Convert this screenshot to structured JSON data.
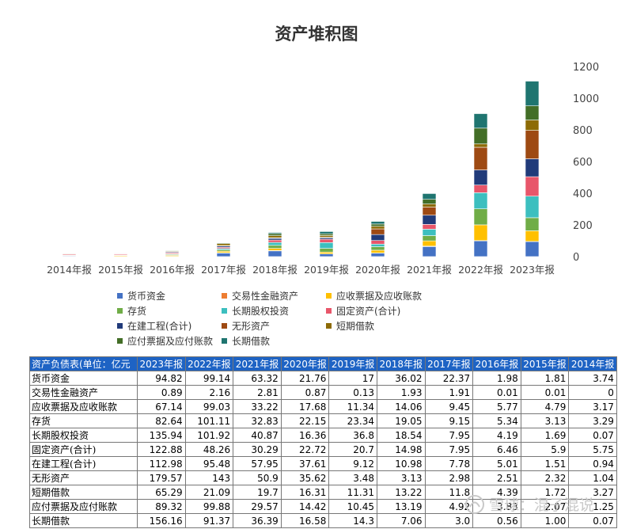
{
  "chart_data": {
    "type": "bar",
    "stacked": true,
    "title": "资产堆积图",
    "categories": [
      "2014年报",
      "2015年报",
      "2016年报",
      "2017年报",
      "2018年报",
      "2019年报",
      "2020年报",
      "2021年报",
      "2022年报",
      "2023年报"
    ],
    "ylim": [
      0,
      1200
    ],
    "yticks": [
      0,
      200,
      400,
      600,
      800,
      1000,
      1200
    ],
    "y_axis_side": "right",
    "legend_position": "bottom",
    "series": [
      {
        "name": "货币资金",
        "color": "#4472c4",
        "values": [
          3.74,
          1.81,
          1.98,
          22.37,
          36.02,
          17,
          21.76,
          63.32,
          99.14,
          94.82
        ]
      },
      {
        "name": "交易性金融资产",
        "color": "#ed7d31",
        "values": [
          0,
          0.01,
          0.01,
          1.91,
          1.93,
          0.13,
          0.87,
          2.81,
          2.16,
          0.89
        ]
      },
      {
        "name": "应收票据及应收账款",
        "color": "#ffc000",
        "values": [
          3.17,
          4.79,
          5.77,
          9.45,
          14.06,
          11.34,
          17.68,
          33.22,
          99.03,
          67.14
        ]
      },
      {
        "name": "存货",
        "color": "#70ad47",
        "values": [
          3.29,
          3.13,
          5.34,
          9.15,
          19.05,
          23.34,
          22.15,
          32.83,
          101.11,
          82.64
        ]
      },
      {
        "name": "长期股权投资",
        "color": "#3cbfbf",
        "values": [
          0.07,
          1.69,
          4.19,
          7.95,
          18.54,
          36.8,
          16.36,
          40.87,
          101.92,
          135.94
        ]
      },
      {
        "name": "固定资产(合计)",
        "color": "#e8566a",
        "values": [
          5.75,
          5.9,
          6.46,
          7.95,
          14.98,
          20.7,
          22.72,
          30.29,
          48.26,
          122.88
        ]
      },
      {
        "name": "在建工程(合计)",
        "color": "#213b7a",
        "values": [
          0.94,
          1.51,
          5.01,
          7.78,
          10.98,
          9.12,
          37.61,
          57.95,
          95.48,
          112.98
        ]
      },
      {
        "name": "无形资产",
        "color": "#9e4a13",
        "values": [
          1.04,
          2.32,
          2.51,
          2.98,
          3.13,
          3.48,
          35.62,
          50.9,
          143,
          179.57
        ]
      },
      {
        "name": "短期借款",
        "color": "#8d6b06",
        "values": [
          3.27,
          1.72,
          4.39,
          11.8,
          13.22,
          11.31,
          16.31,
          19.7,
          21.09,
          65.29
        ]
      },
      {
        "name": "应付票据及应付账款",
        "color": "#436e27",
        "values": [
          1.25,
          2.07,
          3.83,
          4.92,
          13.19,
          10.45,
          14.42,
          29.57,
          99.88,
          89.32
        ]
      },
      {
        "name": "长期借款",
        "color": "#1f7570",
        "values": [
          0.07,
          1,
          0.56,
          3,
          7.06,
          14.3,
          16.58,
          36.39,
          91.37,
          156.16
        ]
      }
    ]
  },
  "table": {
    "header_label": "资产负债表(单位：亿元",
    "columns": [
      "2023年报",
      "2022年报",
      "2021年报",
      "2020年报",
      "2019年报",
      "2018年报",
      "2017年报",
      "2016年报",
      "2015年报",
      "2014年报"
    ],
    "rows": [
      {
        "label": "货币资金",
        "values": [
          "94.82",
          "99.14",
          "63.32",
          "21.76",
          "17",
          "36.02",
          "22.37",
          "1.98",
          "1.81",
          "3.74"
        ]
      },
      {
        "label": "交易性金融资产",
        "values": [
          "0.89",
          "2.16",
          "2.81",
          "0.87",
          "0.13",
          "1.93",
          "1.91",
          "0.01",
          "0.01",
          "0"
        ]
      },
      {
        "label": "应收票据及应收账款",
        "values": [
          "67.14",
          "99.03",
          "33.22",
          "17.68",
          "11.34",
          "14.06",
          "9.45",
          "5.77",
          "4.79",
          "3.17"
        ]
      },
      {
        "label": "存货",
        "values": [
          "82.64",
          "101.11",
          "32.83",
          "22.15",
          "23.34",
          "19.05",
          "9.15",
          "5.34",
          "3.13",
          "3.29"
        ]
      },
      {
        "label": "长期股权投资",
        "values": [
          "135.94",
          "101.92",
          "40.87",
          "16.36",
          "36.8",
          "18.54",
          "7.95",
          "4.19",
          "1.69",
          "0.07"
        ]
      },
      {
        "label": "固定资产(合计)",
        "values": [
          "122.88",
          "48.26",
          "30.29",
          "22.72",
          "20.7",
          "14.98",
          "7.95",
          "6.46",
          "5.9",
          "5.75"
        ]
      },
      {
        "label": "在建工程(合计)",
        "values": [
          "112.98",
          "95.48",
          "57.95",
          "37.61",
          "9.12",
          "10.98",
          "7.78",
          "5.01",
          "1.51",
          "0.94"
        ]
      },
      {
        "label": "无形资产",
        "values": [
          "179.57",
          "143",
          "50.9",
          "35.62",
          "3.48",
          "3.13",
          "2.98",
          "2.51",
          "2.32",
          "1.04"
        ]
      },
      {
        "label": "短期借款",
        "values": [
          "65.29",
          "21.09",
          "19.7",
          "16.31",
          "11.31",
          "13.22",
          "11.8",
          "4.39",
          "1.72",
          "3.27"
        ]
      },
      {
        "label": "应付票据及应付账款",
        "values": [
          "89.32",
          "99.88",
          "29.57",
          "14.42",
          "10.45",
          "13.19",
          "4.92",
          "3.83",
          "2.07",
          "1.25"
        ]
      },
      {
        "label": "长期借款",
        "values": [
          "156.16",
          "91.37",
          "36.39",
          "16.58",
          "14.3",
          "7.06",
          "3.0",
          "0.56",
          "1.00",
          "0.07"
        ]
      }
    ]
  },
  "watermark": {
    "text": "雪球：混子混说"
  }
}
